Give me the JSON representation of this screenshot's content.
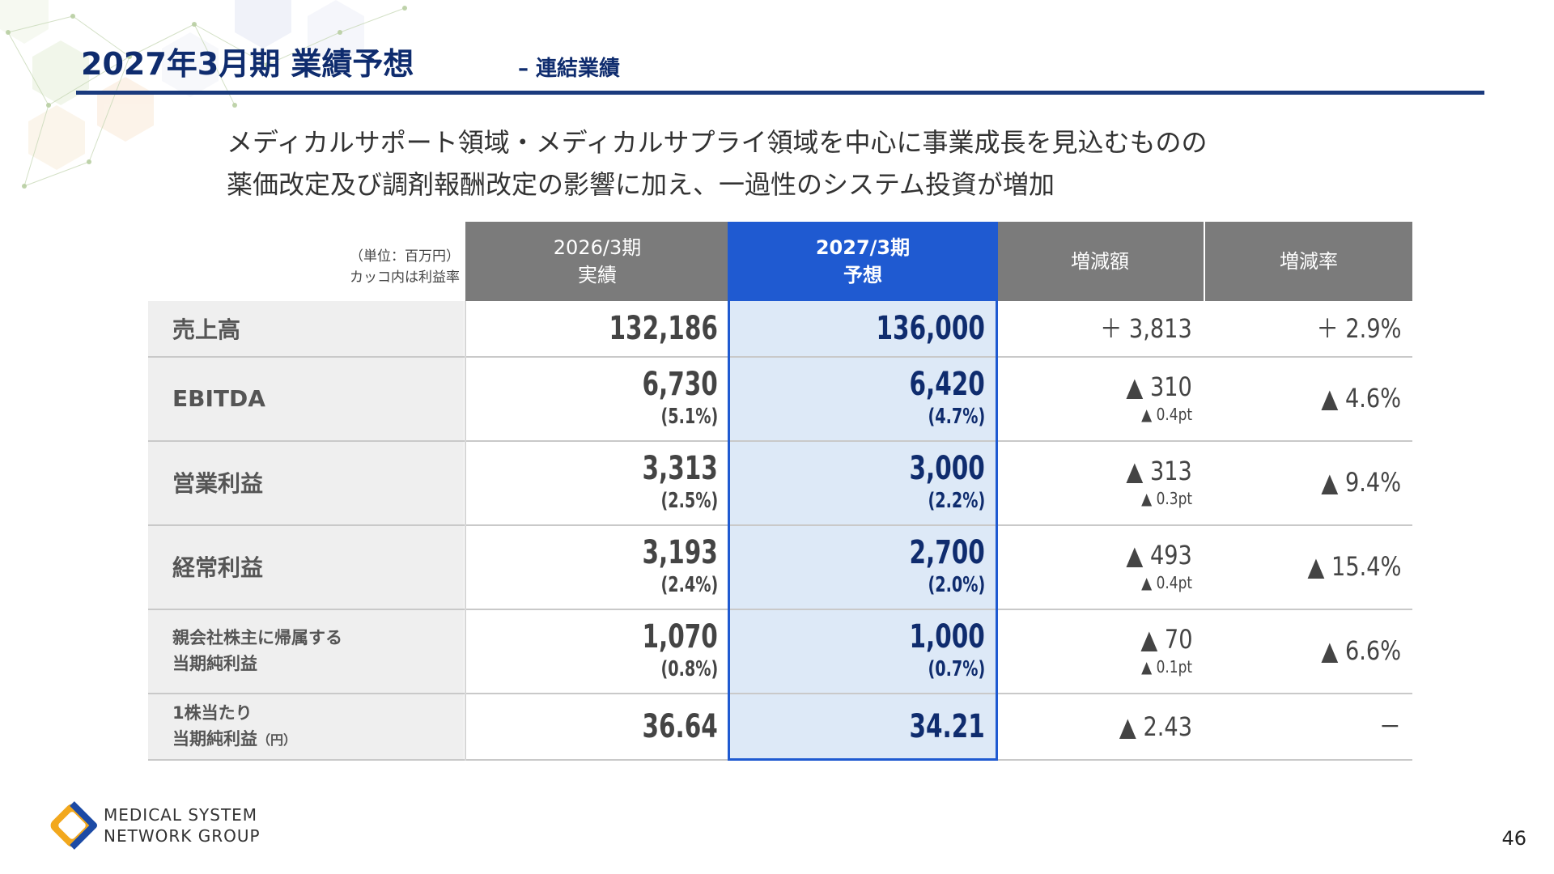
{
  "header": {
    "title": "2027年3月期 業績予想",
    "subtitle": "– 連結業績"
  },
  "lead": {
    "line1": "メディカルサポート領域・メディカルサプライ領域を中心に事業成長を見込むものの",
    "line2": "薬価改定及び調剤報酬改定の影響に加え、一過性のシステム投資が増加"
  },
  "table": {
    "unit_note_1": "（単位：百万円）",
    "unit_note_2": "カッコ内は利益率",
    "columns": [
      {
        "line1": "2026/3期",
        "line2": "実績"
      },
      {
        "line1": "2027/3期",
        "line2": "予想"
      },
      {
        "line1": "増減額",
        "line2": ""
      },
      {
        "line1": "増減率",
        "line2": ""
      }
    ],
    "rows": [
      {
        "label1": "売上高",
        "label2": "",
        "label_unit": "",
        "actual": "132,186",
        "actual_pct": "",
        "forecast": "136,000",
        "forecast_pct": "",
        "diff": "＋ 3,813",
        "diff_sub": "",
        "rate": "＋ 2.9%"
      },
      {
        "label1": "EBITDA",
        "label2": "",
        "label_unit": "",
        "actual": "6,730",
        "actual_pct": "(5.1%)",
        "forecast": "6,420",
        "forecast_pct": "(4.7%)",
        "diff": "▲ 310",
        "diff_sub": "▲ 0.4pt",
        "rate": "▲ 4.6%"
      },
      {
        "label1": "営業利益",
        "label2": "",
        "label_unit": "",
        "actual": "3,313",
        "actual_pct": "(2.5%)",
        "forecast": "3,000",
        "forecast_pct": "(2.2%)",
        "diff": "▲ 313",
        "diff_sub": "▲ 0.3pt",
        "rate": "▲ 9.4%"
      },
      {
        "label1": "経常利益",
        "label2": "",
        "label_unit": "",
        "actual": "3,193",
        "actual_pct": "(2.4%)",
        "forecast": "2,700",
        "forecast_pct": "(2.0%)",
        "diff": "▲ 493",
        "diff_sub": "▲ 0.4pt",
        "rate": "▲ 15.4%"
      },
      {
        "label1": "親会社株主に帰属する",
        "label2": "当期純利益",
        "label_unit": "",
        "actual": "1,070",
        "actual_pct": "(0.8%)",
        "forecast": "1,000",
        "forecast_pct": "(0.7%)",
        "diff": "▲ 70",
        "diff_sub": "▲ 0.1pt",
        "rate": "▲ 6.6%"
      },
      {
        "label1": "1株当たり",
        "label2": "当期純利益",
        "label_unit": "（円）",
        "actual": "36.64",
        "actual_pct": "",
        "forecast": "34.21",
        "forecast_pct": "",
        "diff": "▲ 2.43",
        "diff_sub": "",
        "rate": "－"
      }
    ]
  },
  "footer": {
    "logo_line1": "MEDICAL SYSTEM",
    "logo_line2": "NETWORK GROUP",
    "page_number": "46"
  },
  "colors": {
    "title": "#0f2c6e",
    "header_gray": "#7b7b7b",
    "highlight_blue": "#1f5ad1",
    "highlight_bg": "#dde9f7"
  }
}
